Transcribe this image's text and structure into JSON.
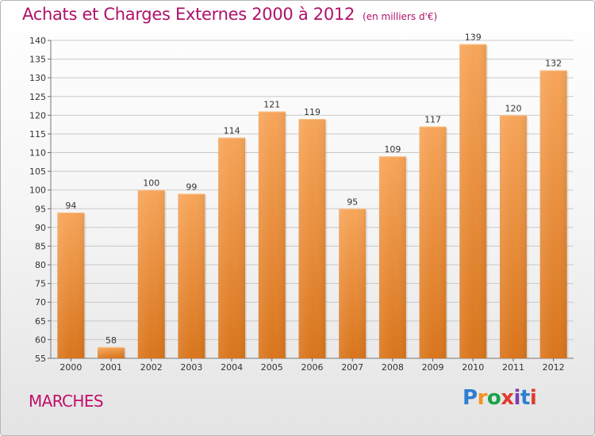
{
  "header": {
    "title": "Achats et Charges Externes 2000 à 2012",
    "subtitle": "(en milliers d'€)"
  },
  "footer": {
    "place": "MARCHES",
    "logo_text": "Proxiti",
    "logo_colors": [
      "#2e7fd1",
      "#f39220",
      "#1aa34a",
      "#e03b2f",
      "#7a3fb0",
      "#2e7fd1",
      "#e03b2f"
    ]
  },
  "colors": {
    "accent": "#b0116a",
    "bar_top": "#f7a55a",
    "bar_bottom": "#d9751c"
  },
  "chart_data": {
    "type": "bar",
    "categories": [
      "2000",
      "2001",
      "2002",
      "2003",
      "2004",
      "2005",
      "2006",
      "2007",
      "2008",
      "2009",
      "2010",
      "2011",
      "2012"
    ],
    "values": [
      94,
      58,
      100,
      99,
      114,
      121,
      119,
      95,
      109,
      117,
      139,
      120,
      132
    ],
    "ylim": [
      55,
      140
    ],
    "yticks": [
      55,
      60,
      65,
      70,
      75,
      80,
      85,
      90,
      95,
      100,
      105,
      110,
      115,
      120,
      125,
      130,
      135,
      140
    ],
    "grid": true
  }
}
